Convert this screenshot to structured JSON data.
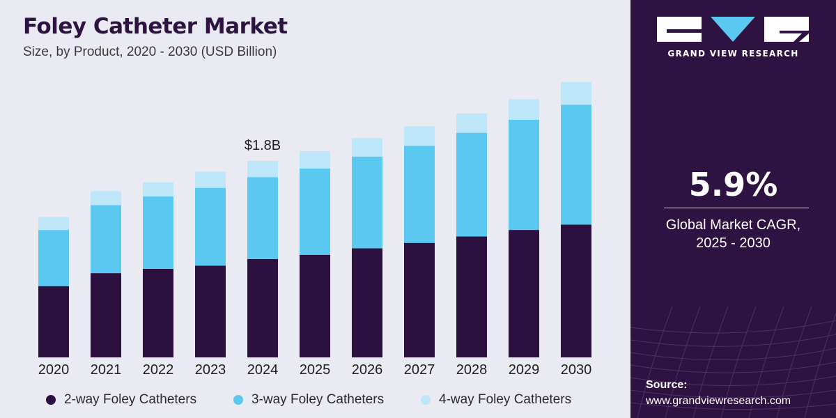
{
  "header": {
    "title": "Foley Catheter Market",
    "subtitle": "Size, by Product, 2020 - 2030 (USD Billion)"
  },
  "chart_data": {
    "type": "bar",
    "stacked": true,
    "categories": [
      "2020",
      "2021",
      "2022",
      "2023",
      "2024",
      "2025",
      "2026",
      "2027",
      "2028",
      "2029",
      "2030"
    ],
    "series": [
      {
        "name": "2-way Foley Catheters",
        "color": "#2c1040",
        "values": [
          0.66,
          0.78,
          0.82,
          0.85,
          0.91,
          0.95,
          1.01,
          1.06,
          1.12,
          1.18,
          1.23
        ]
      },
      {
        "name": "3-way Foley Catheters",
        "color": "#5bc8f2",
        "values": [
          0.52,
          0.63,
          0.67,
          0.72,
          0.76,
          0.8,
          0.85,
          0.9,
          0.96,
          1.02,
          1.11
        ]
      },
      {
        "name": "4-way Foley Catheters",
        "color": "#bde6f9",
        "values": [
          0.12,
          0.13,
          0.13,
          0.15,
          0.15,
          0.16,
          0.17,
          0.18,
          0.18,
          0.19,
          0.21
        ]
      }
    ],
    "annotations": [
      {
        "category": "2024",
        "text": "$1.8B"
      }
    ],
    "ylim": [
      0,
      2.6
    ],
    "legend_position": "bottom",
    "grid": false
  },
  "sidebar": {
    "brand": "GRAND VIEW RESEARCH",
    "cagr_value": "5.9%",
    "cagr_label_line1": "Global Market CAGR,",
    "cagr_label_line2": "2025 - 2030",
    "source_title": "Source:",
    "source_url": "www.grandviewresearch.com"
  },
  "colors": {
    "sidebar_bg": "#2e1242",
    "main_bg": "#e9eaf2",
    "title": "#2d1340"
  }
}
